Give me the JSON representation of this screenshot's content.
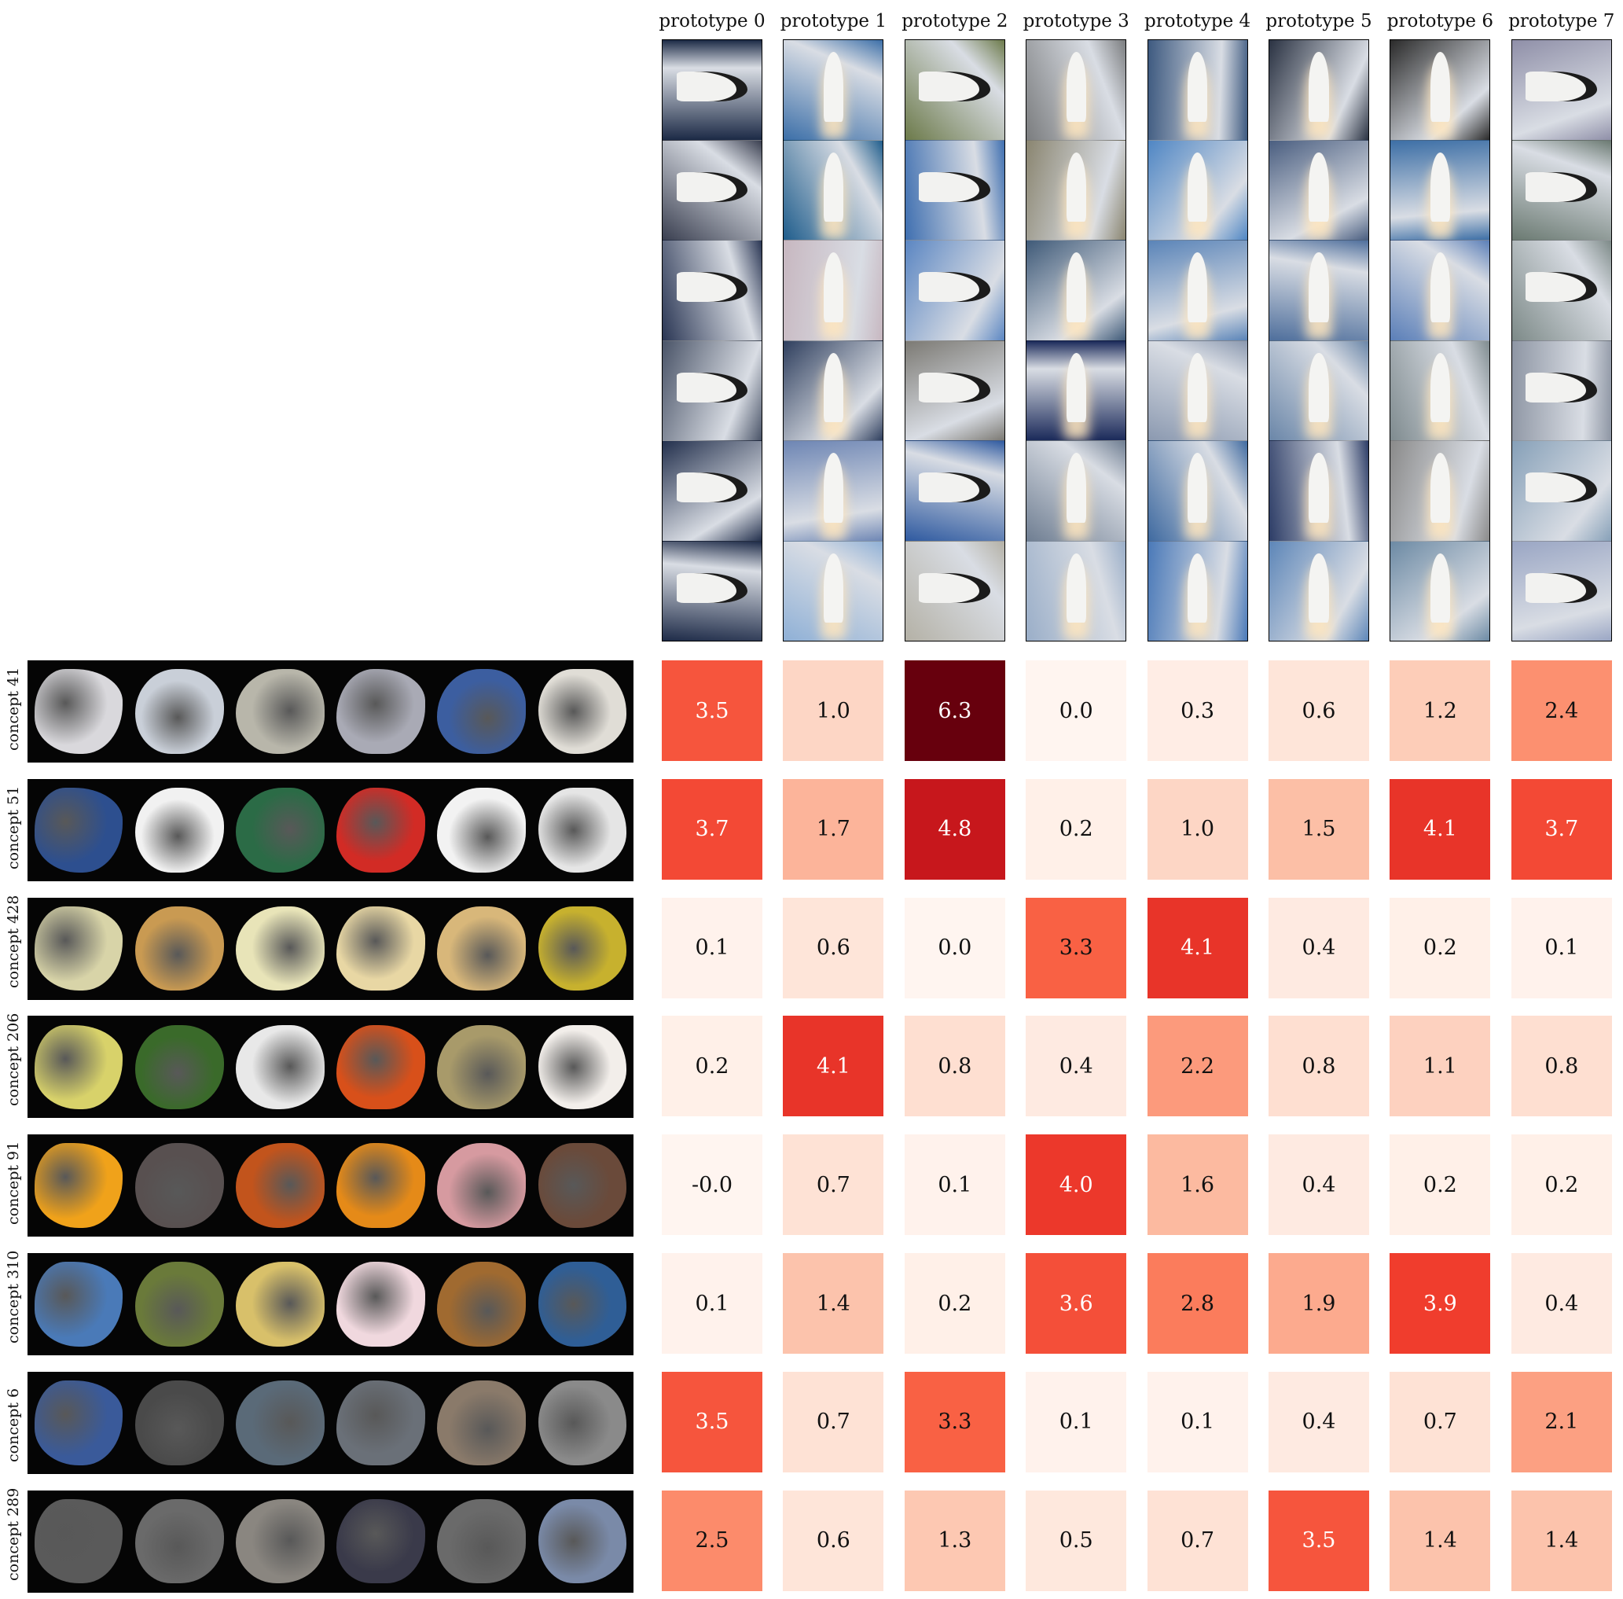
{
  "chart_data": {
    "type": "heatmap",
    "colormap": "Reds",
    "vmin": 0.0,
    "vmax": 6.3,
    "columns": [
      "prototype 0",
      "prototype 1",
      "prototype 2",
      "prototype 3",
      "prototype 4",
      "prototype 5",
      "prototype 6",
      "prototype 7"
    ],
    "rows": [
      "concept 41",
      "concept 51",
      "concept 428",
      "concept 206",
      "concept 91",
      "concept 310",
      "concept 6",
      "concept 289"
    ],
    "values": [
      [
        "3.5",
        "1.0",
        "6.3",
        "0.0",
        "0.3",
        "0.6",
        "1.2",
        "2.4"
      ],
      [
        "3.7",
        "1.7",
        "4.8",
        "0.2",
        "1.0",
        "1.5",
        "4.1",
        "3.7"
      ],
      [
        "0.1",
        "0.6",
        "0.0",
        "3.3",
        "4.1",
        "0.4",
        "0.2",
        "0.1"
      ],
      [
        "0.2",
        "4.1",
        "0.8",
        "0.4",
        "2.2",
        "0.8",
        "1.1",
        "0.8"
      ],
      [
        "-0.0",
        "0.7",
        "0.1",
        "4.0",
        "1.6",
        "0.4",
        "0.2",
        "0.2"
      ],
      [
        "0.1",
        "1.4",
        "0.2",
        "3.6",
        "2.8",
        "1.9",
        "3.9",
        "0.4"
      ],
      [
        "3.5",
        "0.7",
        "3.3",
        "0.1",
        "0.1",
        "0.4",
        "0.7",
        "2.1"
      ],
      [
        "2.5",
        "0.6",
        "1.3",
        "0.5",
        "0.7",
        "3.5",
        "1.4",
        "1.4"
      ]
    ],
    "images_per_prototype": 6,
    "images_per_concept": 6,
    "prototype_image_palettes": [
      [
        "#1c2a46",
        "#3a3f50",
        "#2a3654",
        "#4a5468",
        "#23304d",
        "#1e2b48"
      ],
      [
        "#3c6fa8",
        "#1f5d8c",
        "#c7b7c0",
        "#2f3f5e",
        "#6e86b4",
        "#8fb0d6"
      ],
      [
        "#6c7a4a",
        "#3f6fb0",
        "#5b86c2",
        "#7c7a74",
        "#2f5aa0",
        "#b4b1a6"
      ],
      [
        "#7b7d7f",
        "#8a8570",
        "#3f5a78",
        "#1b2a5a",
        "#6f7e92",
        "#9aaec8"
      ],
      [
        "#3e5a80",
        "#4f86c4",
        "#5a84b8",
        "#8b99b0",
        "#3f6aa0",
        "#4a79b8"
      ],
      [
        "#2a3242",
        "#4a5e80",
        "#4f6f9c",
        "#6a86a8",
        "#2c3c66",
        "#5d86b8"
      ],
      [
        "#2a2a2a",
        "#3d6fa6",
        "#5b7fb8",
        "#7f8b8f",
        "#8a8a8a",
        "#6c8aa4"
      ],
      [
        "#8f8fa8",
        "#6b7a72",
        "#7d8a88",
        "#8e96a4",
        "#86a0b8",
        "#9aa6c4"
      ]
    ],
    "concept_patch_colors": [
      [
        "#d9d8dc",
        "#c9cfd8",
        "#b8b6aa",
        "#a9aab5",
        "#3c5ea0",
        "#e0ddd6"
      ],
      [
        "#2d4f8f",
        "#f1f1f1",
        "#2b6b46",
        "#d22b25",
        "#f2f2f2",
        "#e5e5e5"
      ],
      [
        "#d8d4a8",
        "#c99a52",
        "#e8e4b8",
        "#e8d7a4",
        "#d8b77a",
        "#c7b12e"
      ],
      [
        "#d8d26a",
        "#3a6a2a",
        "#e8e8e8",
        "#d8501a",
        "#a89a6a",
        "#f2eeea"
      ],
      [
        "#f0a21a",
        "#585050",
        "#c2541c",
        "#e58a18",
        "#d69aa0",
        "#6a4a3a"
      ],
      [
        "#4a7ab8",
        "#6a7a3a",
        "#d8c06a",
        "#f0d8de",
        "#a06a30",
        "#2f5e96"
      ],
      [
        "#3a5a9a",
        "#4a4a4a",
        "#5a6a78",
        "#6a7078",
        "#8a7a6a",
        "#8a8a8a"
      ],
      [
        "#5a5a5a",
        "#6a6a6a",
        "#8a8680",
        "#3a3a4a",
        "#6a6a6a",
        "#7a8aa8"
      ]
    ]
  }
}
